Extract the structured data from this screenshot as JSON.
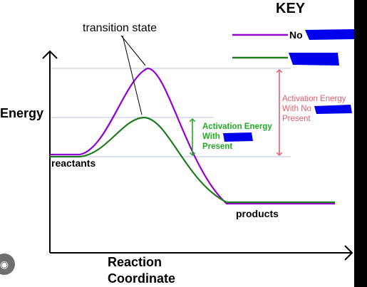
{
  "key_title": "KEY",
  "legend": [
    {
      "label": "No",
      "color": "#9400d3"
    },
    {
      "label": "",
      "color": "#1e7b1e"
    }
  ],
  "labels": {
    "transition_state": "transition state",
    "energy": "Energy",
    "reactants": "reactants",
    "products": "products",
    "x_axis_line1": "Reaction",
    "x_axis_line2": "Coordinate"
  },
  "activation_with": [
    "Activation Energy",
    "With",
    "Present"
  ],
  "activation_without": [
    "Activation Energy",
    "With No",
    "Present"
  ],
  "colors": {
    "uncatalyzed": "#9400d3",
    "catalyzed": "#1e7b1e",
    "ea_without": "#e06070",
    "ea_with": "#22aa22",
    "redaction": "#0000ee",
    "guide": "#b8c2e0"
  },
  "icons": [
    "lens-icon"
  ]
}
